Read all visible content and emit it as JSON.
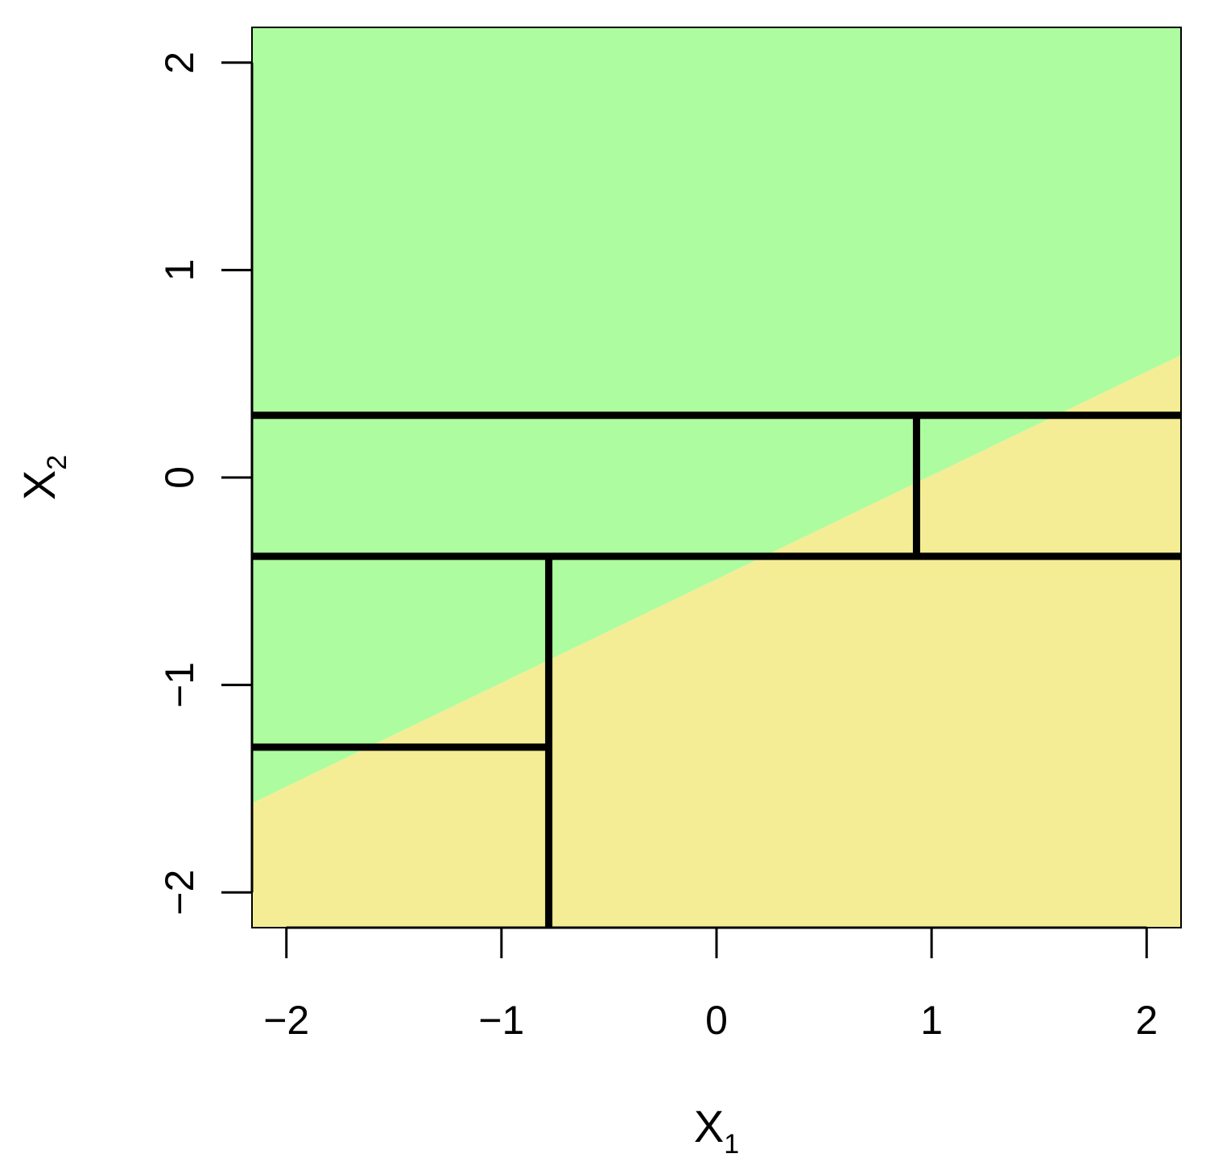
{
  "chart_data": {
    "type": "area",
    "xlabel": "X",
    "xlabel_sub": "1",
    "ylabel": "X",
    "ylabel_sub": "2",
    "xlim": [
      -2.16,
      2.16
    ],
    "ylim": [
      -2.17,
      2.17
    ],
    "x_ticks": [
      -2,
      -1,
      0,
      1,
      2
    ],
    "y_ticks": [
      -2,
      -1,
      0,
      1,
      2
    ],
    "x_tick_labels": [
      "−2",
      "−1",
      "0",
      "1",
      "2"
    ],
    "y_tick_labels": [
      "−2",
      "−1",
      "0",
      "1",
      "2"
    ],
    "regions": [
      {
        "name": "upper",
        "color": "#aefca0"
      },
      {
        "name": "lower",
        "color": "#f4ed95"
      }
    ],
    "boundary": {
      "points": [
        [
          -2.16,
          -1.57
        ],
        [
          2.16,
          0.59
        ]
      ]
    },
    "splits": [
      {
        "orientation": "horizontal",
        "value": 0.3,
        "from": -2.16,
        "to": 2.16
      },
      {
        "orientation": "horizontal",
        "value": -0.38,
        "from": -2.16,
        "to": 2.16
      },
      {
        "orientation": "vertical",
        "value": 0.93,
        "from": -0.38,
        "to": 0.3
      },
      {
        "orientation": "vertical",
        "value": -0.78,
        "from": -2.17,
        "to": -0.38
      },
      {
        "orientation": "horizontal",
        "value": -1.3,
        "from": -2.16,
        "to": -0.78
      }
    ],
    "grid": false,
    "legend": "none"
  }
}
